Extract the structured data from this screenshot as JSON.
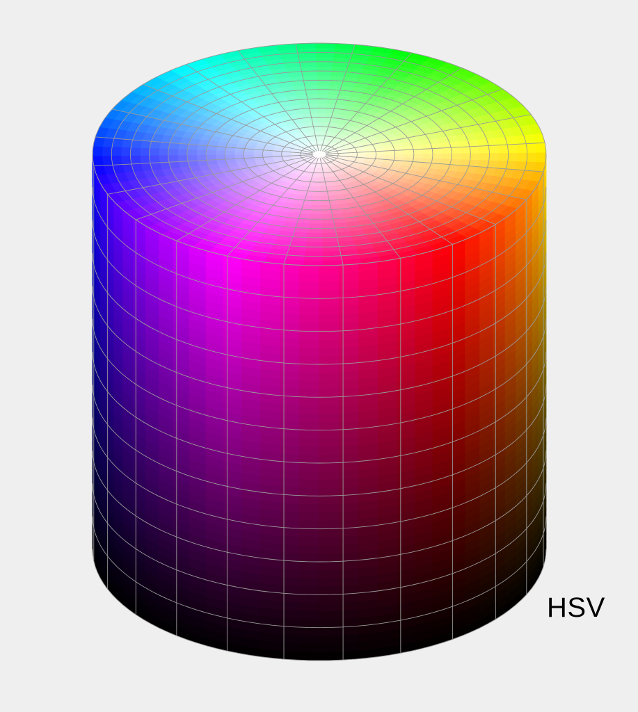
{
  "figure": {
    "label": "HSV"
  },
  "colors": {
    "background": "#efefef",
    "grid_line": "#9a9a9a",
    "label": "#000000"
  },
  "color_model": {
    "name": "HSV",
    "hue_range_deg": [
      0,
      360
    ],
    "saturation_range": [
      0,
      1
    ],
    "value_range": [
      0,
      1
    ],
    "hue_divisions": 24,
    "saturation_divisions": 12,
    "value_divisions": 12
  }
}
